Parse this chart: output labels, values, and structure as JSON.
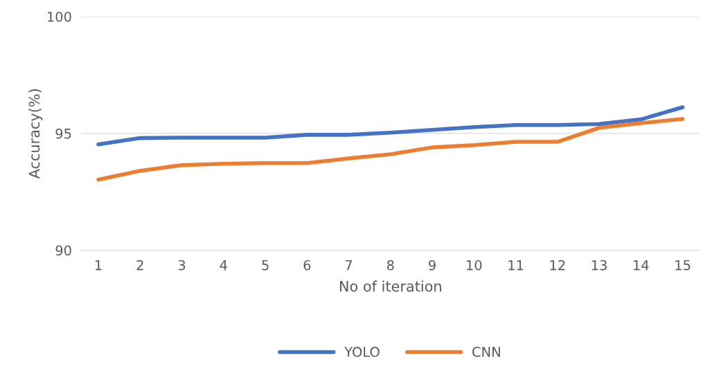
{
  "chart_data": {
    "type": "line",
    "xlabel": "No of iteration",
    "ylabel": "Accuracy(%)",
    "categories": [
      "1",
      "2",
      "3",
      "4",
      "5",
      "6",
      "7",
      "8",
      "9",
      "10",
      "11",
      "12",
      "13",
      "14",
      "15"
    ],
    "series": [
      {
        "name": "YOLO",
        "color": "#4472c4",
        "values": [
          94.53,
          94.8,
          94.82,
          94.82,
          94.82,
          94.94,
          94.94,
          95.03,
          95.15,
          95.27,
          95.36,
          95.36,
          95.4,
          95.6,
          96.12
        ]
      },
      {
        "name": "CNN",
        "color": "#ed7d31",
        "values": [
          93.02,
          93.4,
          93.64,
          93.7,
          93.73,
          93.73,
          93.93,
          94.11,
          94.4,
          94.5,
          94.64,
          94.64,
          95.24,
          95.44,
          95.62
        ]
      }
    ],
    "ylim": [
      90,
      100
    ],
    "yticks": [
      90,
      95,
      100
    ],
    "grid": "y",
    "legend": "bottom",
    "marker": "none",
    "line_style": "solid"
  }
}
